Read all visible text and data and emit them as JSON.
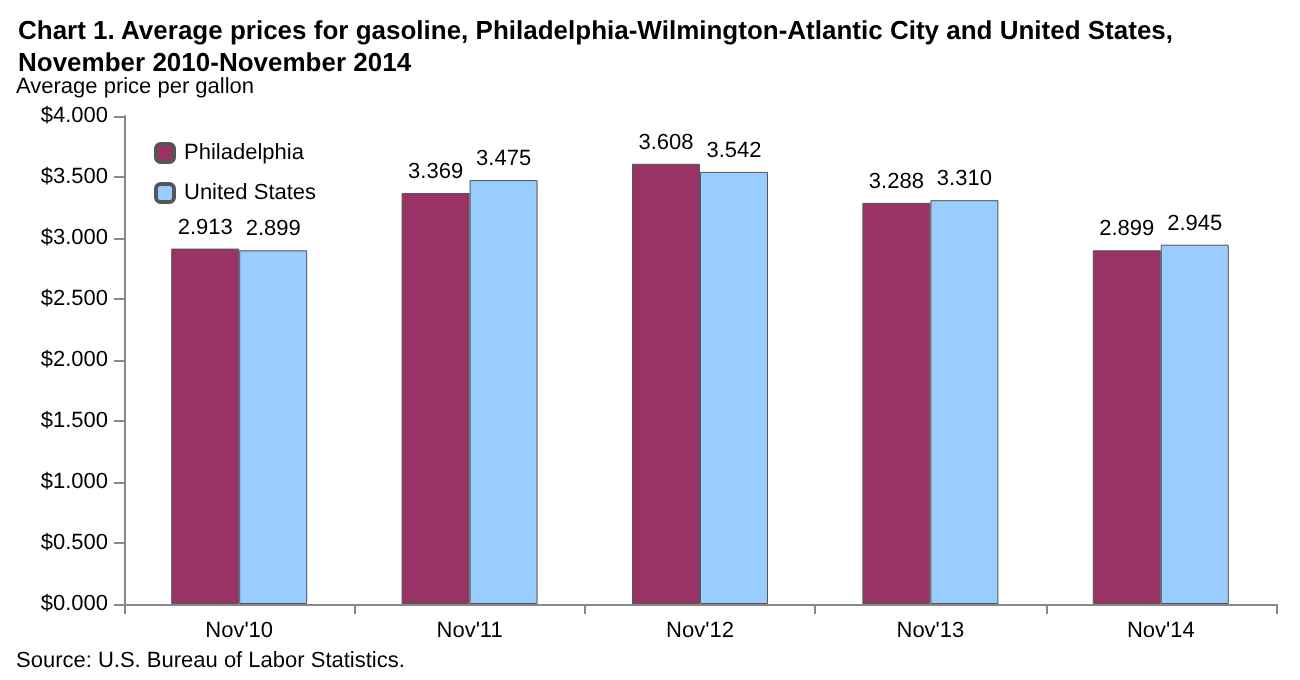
{
  "chart_data": {
    "type": "bar",
    "title": "Chart 1. Average prices for gasoline, Philadelphia-Wilmington-Atlantic City and United States, November 2010-November 2014",
    "ylabel": "Average price per gallon",
    "categories": [
      "Nov'10",
      "Nov'11",
      "Nov'12",
      "Nov'13",
      "Nov'14"
    ],
    "series": [
      {
        "name": "Philadelphia",
        "color": "#993366",
        "values": [
          2.913,
          3.369,
          3.608,
          3.288,
          2.899
        ],
        "value_labels": [
          "2.913",
          "3.369",
          "3.608",
          "3.288",
          "2.899"
        ]
      },
      {
        "name": "United States",
        "color": "#99ccff",
        "values": [
          2.899,
          3.475,
          3.542,
          3.31,
          2.945
        ],
        "value_labels": [
          "2.899",
          "3.475",
          "3.542",
          "3.310",
          "2.945"
        ]
      }
    ],
    "ylim": [
      0,
      4
    ],
    "yticks": [
      {
        "value": 0,
        "label": "$0.000"
      },
      {
        "value": 0.5,
        "label": "$0.500"
      },
      {
        "value": 1,
        "label": "$1.000"
      },
      {
        "value": 1.5,
        "label": "$1.500"
      },
      {
        "value": 2,
        "label": "$2.000"
      },
      {
        "value": 2.5,
        "label": "$2.500"
      },
      {
        "value": 3,
        "label": "$3.000"
      },
      {
        "value": 3.5,
        "label": "$3.500"
      },
      {
        "value": 4,
        "label": "$4.000"
      }
    ],
    "grid": false,
    "legend": "top left",
    "annotations": [
      "Source: U.S. Bureau of Labor Statistics."
    ]
  }
}
